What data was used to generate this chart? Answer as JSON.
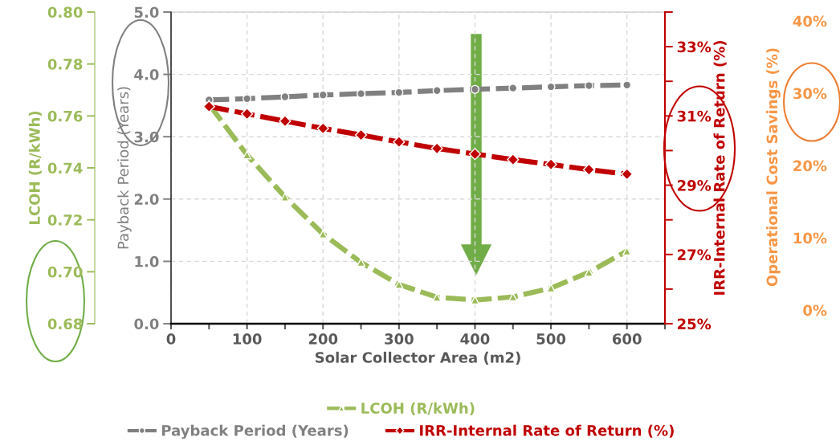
{
  "chart_data": {
    "type": "line",
    "xlabel": "Solar Collector Area (m2)",
    "ylabel": "Payback Period (Years)",
    "y2label": "IRR-Internal Rate of Return (%)",
    "y3label": "LCOH (R/kWh)",
    "x": [
      50,
      100,
      150,
      200,
      250,
      300,
      350,
      400,
      450,
      500,
      550,
      600
    ],
    "series": [
      {
        "name": "LCOH (R/kWh)",
        "color": "#9bbb59",
        "axis": "y3",
        "marker": "triangle",
        "values": [
          0.7645,
          0.745,
          0.7288,
          0.7145,
          0.7036,
          0.6951,
          0.6902,
          0.6891,
          0.6903,
          0.6937,
          0.6998,
          0.708
        ]
      },
      {
        "name": "Payback Period (Years)",
        "color": "#808080",
        "axis": "y",
        "marker": "circle",
        "values": [
          3.59,
          3.61,
          3.64,
          3.67,
          3.69,
          3.71,
          3.74,
          3.76,
          3.78,
          3.8,
          3.82,
          3.83
        ]
      },
      {
        "name": "IRR-Internal Rate of Return (%)",
        "color": "#c00000",
        "axis": "y2",
        "marker": "diamond",
        "values": [
          31.27,
          31.06,
          30.85,
          30.64,
          30.45,
          30.25,
          30.06,
          29.9,
          29.74,
          29.6,
          29.45,
          29.32
        ]
      }
    ],
    "xlim": [
      0,
      650
    ],
    "xticks": [
      0,
      {
        "value": 50,
        "label": null
      },
      100,
      {
        "value": 150,
        "label": null
      },
      200,
      {
        "value": 250,
        "label": null
      },
      300,
      {
        "value": 350,
        "label": null
      },
      400,
      {
        "value": 450,
        "label": null
      },
      500,
      {
        "value": 550,
        "label": null
      },
      600,
      {
        "value": 650,
        "label": null
      }
    ],
    "ylim": [
      0,
      5
    ],
    "yticks": [
      {
        "value": 0,
        "label": "0.0"
      },
      {
        "value": 1,
        "label": "1.0"
      },
      {
        "value": 2,
        "label": "2.0"
      },
      {
        "value": 3,
        "label": "3.0"
      },
      {
        "value": 4,
        "label": "4.0"
      },
      {
        "value": 5,
        "label": "5.0"
      }
    ],
    "y2lim": [
      25,
      34
    ],
    "y2ticks": [
      {
        "value": 25,
        "label": "25%"
      },
      {
        "value": 26,
        "label": null
      },
      {
        "value": 27,
        "label": "27%"
      },
      {
        "value": 28,
        "label": null
      },
      {
        "value": 29,
        "label": "29%"
      },
      {
        "value": 30,
        "label": null
      },
      {
        "value": 31,
        "label": "31%"
      },
      {
        "value": 32,
        "label": null
      },
      {
        "value": 33,
        "label": "33%"
      },
      {
        "value": 34,
        "label": null
      }
    ],
    "y3lim": [
      0.68,
      0.8
    ],
    "y3ticks": [
      {
        "value": 0.68,
        "label": "0.68"
      },
      {
        "value": 0.7,
        "label": "0.70"
      },
      {
        "value": 0.72,
        "label": "0.72"
      },
      {
        "value": 0.74,
        "label": "0.74"
      },
      {
        "value": 0.76,
        "label": "0.76"
      },
      {
        "value": 0.78,
        "label": "0.78"
      },
      {
        "value": 0.8,
        "label": "0.80"
      }
    ],
    "annotations": [
      "Operational Cost Savings (%)",
      "0%",
      "10%",
      "20%",
      "30%",
      "40%"
    ],
    "grid": true,
    "legend": "bottom",
    "line_style": "dashed"
  }
}
